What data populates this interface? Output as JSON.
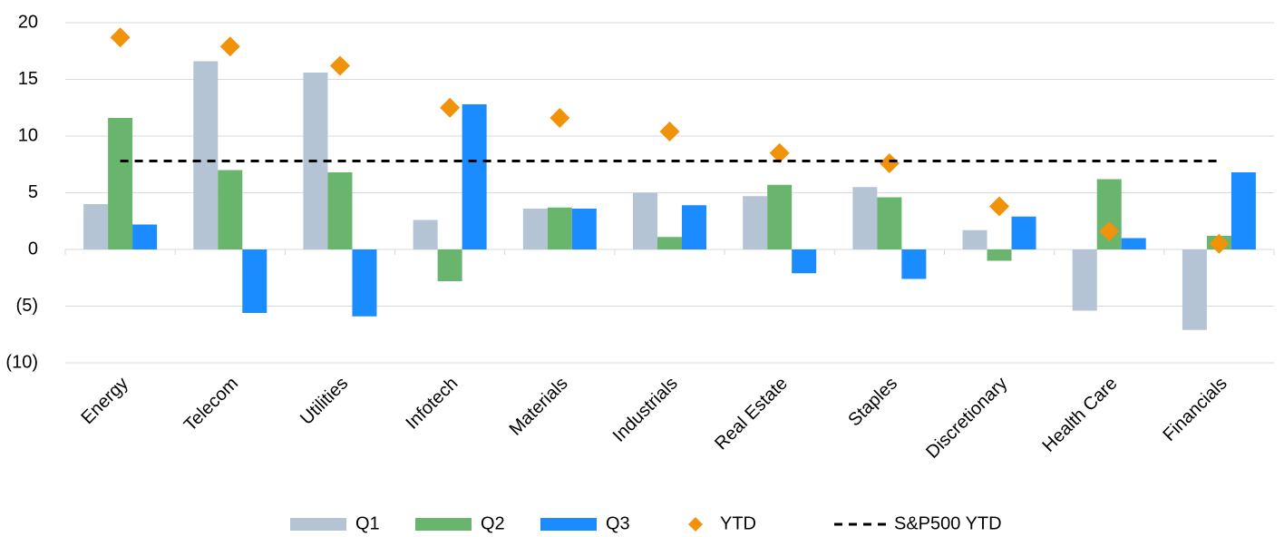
{
  "chart_data": {
    "type": "bar",
    "categories": [
      "Energy",
      "Telecom",
      "Utilities",
      "Infotech",
      "Materials",
      "Industrials",
      "Real Estate",
      "Staples",
      "Discretionary",
      "Health Care",
      "Financials"
    ],
    "series": [
      {
        "name": "Q1",
        "type": "bar",
        "color": "#b4c4d4",
        "values": [
          4.0,
          16.6,
          15.6,
          2.6,
          3.6,
          5.0,
          4.7,
          5.5,
          1.7,
          -5.4,
          -7.1
        ]
      },
      {
        "name": "Q2",
        "type": "bar",
        "color": "#6ab56e",
        "values": [
          11.6,
          7.0,
          6.8,
          -2.8,
          3.7,
          1.1,
          5.7,
          4.6,
          -1.0,
          6.2,
          1.2
        ]
      },
      {
        "name": "Q3",
        "type": "bar",
        "color": "#1a8cff",
        "values": [
          2.2,
          -5.6,
          -5.9,
          12.8,
          3.6,
          3.9,
          -2.1,
          -2.6,
          2.9,
          1.0,
          6.8
        ]
      },
      {
        "name": "YTD",
        "type": "scatter",
        "color": "#f0920a",
        "values": [
          18.7,
          17.9,
          16.2,
          12.5,
          11.6,
          10.4,
          8.5,
          7.6,
          3.8,
          1.6,
          0.5
        ]
      },
      {
        "name": "S&P500 YTD",
        "type": "line",
        "color": "#000000",
        "values": [
          7.8,
          7.8,
          7.8,
          7.8,
          7.8,
          7.8,
          7.8,
          7.8,
          7.8,
          7.8,
          7.8
        ]
      }
    ],
    "ylim": [
      -10,
      20
    ],
    "yticks": [
      {
        "value": -10,
        "label": "(10)"
      },
      {
        "value": -5,
        "label": "(5)"
      },
      0,
      5,
      10,
      15,
      20
    ],
    "negative_tick_color": "#ff0000",
    "grid": true,
    "legend": "bottom"
  }
}
